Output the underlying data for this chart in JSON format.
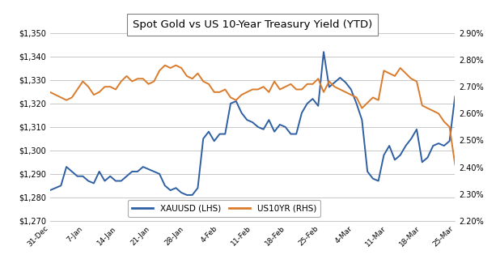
{
  "title": "Spot Gold vs US 10-Year Treasury Yield (YTD)",
  "xauusd_color": "#2E5FA3",
  "us10yr_color": "#D97B2B",
  "background_color": "#FFFFFF",
  "grid_color": "#BFBFBF",
  "x_labels": [
    "31-Dec",
    "7-Jan",
    "14-Jan",
    "21-Jan",
    "28-Jan",
    "4-Feb",
    "11-Feb",
    "18-Feb",
    "25-Feb",
    "4-Mar",
    "11-Mar",
    "18-Mar",
    "25-Mar"
  ],
  "ylim_lhs": [
    1270,
    1350
  ],
  "ylim_rhs": [
    2.2,
    2.9
  ],
  "yticks_lhs": [
    1270,
    1280,
    1290,
    1300,
    1310,
    1320,
    1330,
    1340,
    1350
  ],
  "yticks_rhs": [
    2.2,
    2.3,
    2.4,
    2.5,
    2.6,
    2.7,
    2.8,
    2.9
  ],
  "xauusd": [
    1283,
    1284,
    1285,
    1293,
    1291,
    1289,
    1289,
    1287,
    1286,
    1291,
    1287,
    1289,
    1287,
    1287,
    1289,
    1291,
    1291,
    1293,
    1292,
    1291,
    1290,
    1285,
    1283,
    1284,
    1282,
    1281,
    1281,
    1284,
    1305,
    1308,
    1304,
    1307,
    1307,
    1320,
    1321,
    1316,
    1313,
    1312,
    1310,
    1309,
    1313,
    1308,
    1311,
    1310,
    1307,
    1307,
    1316,
    1320,
    1322,
    1319,
    1342,
    1327,
    1329,
    1331,
    1329,
    1326,
    1320,
    1313,
    1291,
    1288,
    1287,
    1298,
    1302,
    1296,
    1298,
    1302,
    1305,
    1309,
    1295,
    1297,
    1302,
    1303,
    1302,
    1304,
    1323
  ],
  "us10yr": [
    2.68,
    2.67,
    2.66,
    2.65,
    2.66,
    2.69,
    2.72,
    2.7,
    2.67,
    2.68,
    2.7,
    2.7,
    2.69,
    2.72,
    2.74,
    2.72,
    2.73,
    2.73,
    2.71,
    2.72,
    2.76,
    2.78,
    2.77,
    2.78,
    2.77,
    2.74,
    2.73,
    2.75,
    2.72,
    2.71,
    2.68,
    2.68,
    2.69,
    2.66,
    2.65,
    2.67,
    2.68,
    2.69,
    2.69,
    2.7,
    2.68,
    2.72,
    2.69,
    2.7,
    2.71,
    2.69,
    2.69,
    2.71,
    2.71,
    2.73,
    2.68,
    2.72,
    2.7,
    2.69,
    2.68,
    2.67,
    2.66,
    2.62,
    2.64,
    2.66,
    2.65,
    2.76,
    2.75,
    2.74,
    2.77,
    2.75,
    2.73,
    2.72,
    2.63,
    2.62,
    2.61,
    2.6,
    2.57,
    2.55,
    2.41
  ],
  "legend_label_xau": "XAUUSD (LHS)",
  "legend_label_us": "US10YR (RHS)"
}
